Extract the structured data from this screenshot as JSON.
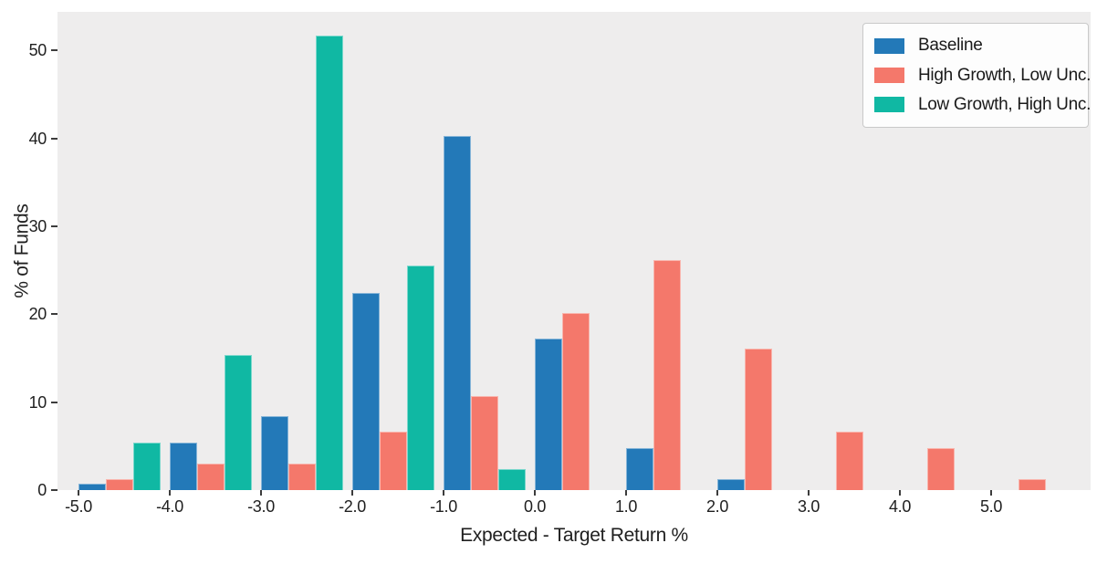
{
  "figure": {
    "background": "#ffffff",
    "plot_background": "#eeeded",
    "text_color": "#1f1f1f"
  },
  "chart_data": {
    "type": "bar",
    "subtype": "grouped-histogram",
    "title": "",
    "xlabel": "Expected - Target Return %",
    "ylabel": "% of Funds",
    "bin_edges": [
      -5,
      -4,
      -3,
      -2,
      -1,
      0,
      1,
      2,
      3,
      4,
      5,
      6
    ],
    "bar_width_units": 0.3,
    "series": [
      {
        "name": "Baseline",
        "color": "#2379b8",
        "values": [
          0.7,
          5.4,
          8.4,
          22.4,
          40.3,
          17.2,
          4.8,
          1.3,
          0,
          0,
          0
        ]
      },
      {
        "name": "High Growth, Low Unc.",
        "color": "#f4786b",
        "values": [
          1.3,
          3.0,
          3.0,
          6.7,
          10.7,
          20.1,
          26.2,
          16.1,
          6.7,
          4.8,
          1.3
        ]
      },
      {
        "name": "Low Growth, High Unc.",
        "color": "#10b8a3",
        "values": [
          5.4,
          15.4,
          51.7,
          25.5,
          2.4,
          0,
          0,
          0,
          0,
          0,
          0
        ]
      }
    ],
    "x_ticks": {
      "values": [
        -5,
        -4,
        -3,
        -2,
        -1,
        0,
        1,
        2,
        3,
        4,
        5
      ],
      "labels": [
        "-5.0",
        "-4.0",
        "-3.0",
        "-2.0",
        "-1.0",
        "0.0",
        "1.0",
        "2.0",
        "3.0",
        "4.0",
        "5.0"
      ]
    },
    "y_ticks": {
      "values": [
        0,
        10,
        20,
        30,
        40,
        50
      ],
      "labels": [
        "0",
        "10",
        "20",
        "30",
        "40",
        "50"
      ]
    },
    "xlim": [
      -5.23,
      6.09
    ],
    "ylim": [
      0,
      54.4
    ],
    "grid": false,
    "legend": {
      "position": "upper right",
      "entries": [
        "Baseline",
        "High Growth, Low Unc.",
        "Low Growth, High Unc."
      ]
    }
  }
}
